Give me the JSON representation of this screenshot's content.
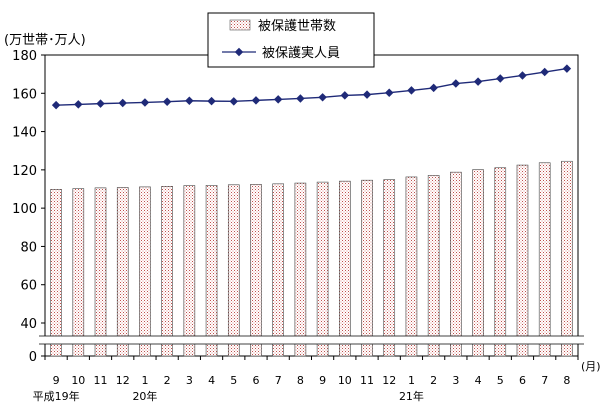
{
  "chart_data": {
    "type": "bar",
    "title": "",
    "y_unit_label": "(万世帯･万人)",
    "x_unit_label": "(月)",
    "ylim": [
      0,
      180
    ],
    "yticks": [
      0,
      40,
      60,
      80,
      100,
      120,
      140,
      160,
      180
    ],
    "axis_break": "between 0 and 40",
    "categories": [
      "9",
      "10",
      "11",
      "12",
      "1",
      "2",
      "3",
      "4",
      "5",
      "6",
      "7",
      "8",
      "9",
      "10",
      "11",
      "12",
      "1",
      "2",
      "3",
      "4",
      "5",
      "6",
      "7",
      "8"
    ],
    "year_labels": [
      {
        "index": 0,
        "label": "平成19年"
      },
      {
        "index": 4,
        "label": "20年"
      },
      {
        "index": 16,
        "label": "21年"
      }
    ],
    "legend_position": "top-center",
    "grid": false,
    "series": [
      {
        "name": "被保護世帯数",
        "kind": "bar",
        "values": [
          109.8,
          110.2,
          110.6,
          110.8,
          111.1,
          111.4,
          111.8,
          111.9,
          112.2,
          112.4,
          112.7,
          113.1,
          113.6,
          114.1,
          114.6,
          114.9,
          116.3,
          117.1,
          118.8,
          120.1,
          121.1,
          122.5,
          123.7,
          124.5
        ]
      },
      {
        "name": "被保護実人員",
        "kind": "line",
        "values": [
          153.8,
          154.2,
          154.6,
          154.9,
          155.2,
          155.6,
          156.1,
          155.9,
          155.8,
          156.3,
          156.8,
          157.3,
          157.9,
          158.9,
          159.3,
          160.3,
          161.5,
          162.8,
          165.1,
          166.1,
          167.7,
          169.3,
          171.1,
          172.9
        ]
      }
    ],
    "colors": {
      "line": "#1f2a78",
      "bar_dot": "#c0504d"
    }
  }
}
